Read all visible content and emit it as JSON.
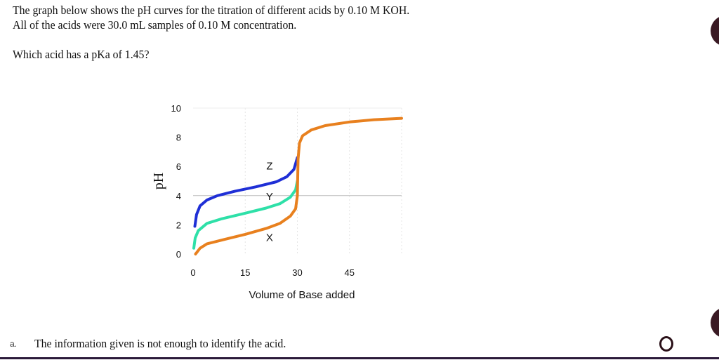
{
  "question": {
    "line1": "The graph below shows the pH curves for the titration of different acids by 0.10 M KOH.",
    "line2": "All of the acids were 30.0 mL samples of 0.10 M concentration.",
    "prompt": "Which acid has a pKa of 1.45?"
  },
  "chart_data": {
    "type": "line",
    "xlabel": "Volume of Base added",
    "ylabel": "pH",
    "xlim": [
      0,
      60
    ],
    "ylim": [
      0,
      10
    ],
    "xticks": [
      "0",
      "15",
      "30",
      "45"
    ],
    "yticks": [
      "0",
      "2",
      "4",
      "6",
      "8",
      "10"
    ],
    "grid": true,
    "series": [
      {
        "name": "Z",
        "color": "#1f2fd6",
        "points": [
          [
            0.5,
            1.9
          ],
          [
            1,
            2.7
          ],
          [
            2,
            3.3
          ],
          [
            4,
            3.7
          ],
          [
            7,
            4.0
          ],
          [
            12,
            4.3
          ],
          [
            18,
            4.6
          ],
          [
            24,
            4.95
          ],
          [
            27,
            5.3
          ],
          [
            29,
            5.8
          ],
          [
            30,
            6.6
          ]
        ]
      },
      {
        "name": "Y",
        "color": "#2ee0a8",
        "points": [
          [
            0.2,
            0.4
          ],
          [
            0.6,
            1.1
          ],
          [
            1.5,
            1.6
          ],
          [
            4,
            2.1
          ],
          [
            8,
            2.4
          ],
          [
            15,
            2.8
          ],
          [
            21,
            3.15
          ],
          [
            25,
            3.45
          ],
          [
            28,
            3.9
          ],
          [
            29.5,
            4.4
          ],
          [
            30,
            5.0
          ]
        ]
      },
      {
        "name": "X",
        "color": "#e8801e",
        "points": [
          [
            0.7,
            0.0
          ],
          [
            2,
            0.4
          ],
          [
            4,
            0.7
          ],
          [
            9,
            1.0
          ],
          [
            15,
            1.35
          ],
          [
            21,
            1.75
          ],
          [
            25,
            2.1
          ],
          [
            28,
            2.6
          ],
          [
            29.5,
            3.1
          ],
          [
            30,
            4.0
          ],
          [
            30.2,
            6.5
          ],
          [
            30.6,
            7.6
          ],
          [
            31.5,
            8.1
          ],
          [
            34,
            8.5
          ],
          [
            38,
            8.8
          ],
          [
            45,
            9.05
          ],
          [
            52,
            9.2
          ],
          [
            60,
            9.3
          ]
        ]
      }
    ]
  },
  "options": [
    {
      "letter": "a.",
      "text": "The information given is not enough to identify the acid."
    }
  ],
  "colors": {
    "accent_dark": "#3a1a24"
  }
}
